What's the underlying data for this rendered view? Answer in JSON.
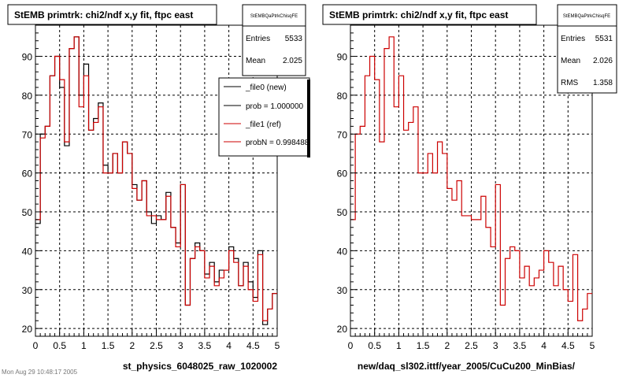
{
  "footer_text": "Mon Aug 29 10:48:17 2005",
  "colors": {
    "new": "#000000",
    "ref": "#cc0000",
    "grid": "#000000",
    "background": "#ffffff"
  },
  "chart_data": [
    {
      "type": "histogram-step",
      "title": "StEMB primtrk: chi2/ndf x,y fit, ftpc east",
      "xlabel": "st_physics_6048025_raw_1020002",
      "ylabel": "",
      "xlim": [
        0,
        5
      ],
      "ylim": [
        18,
        98
      ],
      "bin_width": 0.1,
      "x_ticks": [
        "0",
        "0.5",
        "1",
        "1.5",
        "2",
        "2.5",
        "3",
        "3.5",
        "4",
        "4.5",
        "5"
      ],
      "y_ticks": [
        "20",
        "30",
        "40",
        "50",
        "60",
        "70",
        "80",
        "90"
      ],
      "grid": true,
      "stats": {
        "name": "StEMBQaPtrkChisqFE",
        "rows": [
          {
            "label": "Entries",
            "value": "5533"
          },
          {
            "label": "Mean",
            "value": "2.025"
          }
        ]
      },
      "legend": {
        "placement": "top-right",
        "entries": [
          {
            "text": "_file0 (new)",
            "color": "#000000"
          },
          {
            "text": "prob = 1.000000",
            "color": "#000000"
          },
          {
            "text": "_file1 (ref)",
            "color": "#cc0000"
          },
          {
            "text": "probN = 0.998488",
            "color": "#cc0000"
          }
        ]
      },
      "series": [
        {
          "name": "_file0 (new)",
          "color": "#000000",
          "values": [
            47,
            70,
            72,
            85,
            90,
            82,
            67,
            92,
            95,
            80,
            88,
            71,
            74,
            78,
            62,
            60,
            65,
            60,
            68,
            65,
            57,
            53,
            58,
            50,
            47,
            49,
            48,
            55,
            46,
            42,
            57,
            26,
            38,
            42,
            40,
            34,
            37,
            32,
            35,
            35,
            41,
            38,
            31,
            37,
            32,
            28,
            40,
            21,
            25,
            29
          ]
        },
        {
          "name": "_file1 (ref)",
          "color": "#cc0000",
          "values": [
            48,
            69,
            72,
            85,
            90,
            84,
            68,
            92,
            95,
            77,
            85,
            71,
            73,
            77,
            60,
            60,
            65,
            60,
            68,
            65,
            56,
            53,
            58,
            49,
            49,
            48,
            48,
            54,
            46,
            41,
            57,
            26,
            38,
            41,
            40,
            33,
            36,
            31,
            33,
            35,
            40,
            37,
            31,
            36,
            30,
            27,
            39,
            22,
            25,
            29
          ]
        }
      ]
    },
    {
      "type": "histogram-step",
      "title": "StEMB primtrk: chi2/ndf x,y fit, ftpc east",
      "xlabel": "new/daq_sl302.ittf/year_2005/CuCu200_MinBias/",
      "ylabel": "",
      "xlim": [
        0,
        5
      ],
      "ylim": [
        18,
        98
      ],
      "bin_width": 0.1,
      "x_ticks": [
        "0",
        "0.5",
        "1",
        "1.5",
        "2",
        "2.5",
        "3",
        "3.5",
        "4",
        "4.5",
        "5"
      ],
      "y_ticks": [
        "20",
        "30",
        "40",
        "50",
        "60",
        "70",
        "80",
        "90"
      ],
      "grid": true,
      "stats": {
        "name": "StEMBQaPtrkChisqFE",
        "rows": [
          {
            "label": "Entries",
            "value": "5531"
          },
          {
            "label": "Mean",
            "value": "2.026"
          },
          {
            "label": "RMS",
            "value": "1.358"
          }
        ]
      },
      "series": [
        {
          "name": "",
          "color": "#cc0000",
          "values": [
            48,
            70,
            72,
            85,
            90,
            84,
            68,
            92,
            95,
            77,
            85,
            71,
            73,
            77,
            60,
            60,
            65,
            60,
            68,
            65,
            56,
            53,
            58,
            49,
            49,
            48,
            48,
            54,
            46,
            41,
            57,
            26,
            38,
            41,
            40,
            33,
            36,
            31,
            33,
            35,
            40,
            37,
            31,
            36,
            30,
            27,
            39,
            22,
            25,
            29
          ]
        }
      ]
    }
  ]
}
